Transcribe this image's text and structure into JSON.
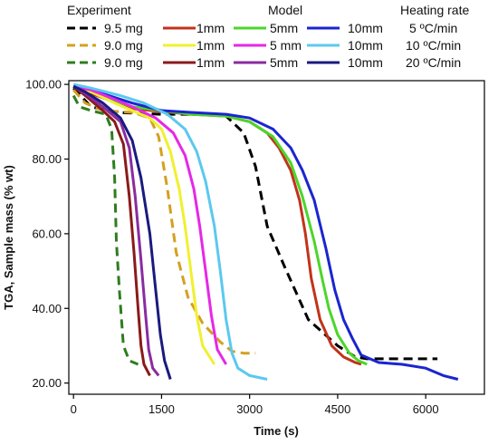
{
  "legend_headers": {
    "experiment": "Experiment",
    "model": "Model",
    "heating_rate": "Heating rate"
  },
  "chart_data": {
    "type": "line",
    "xlabel": "Time (s)",
    "ylabel": "TGA, Sample mass (% wt)",
    "xlim": [
      -80,
      7000
    ],
    "ylim": [
      17,
      101
    ],
    "xticks": [
      0,
      1500,
      3000,
      4500,
      6000
    ],
    "xtick_labels": [
      "0",
      "1500",
      "3000",
      "4500",
      "6000"
    ],
    "yticks": [
      20,
      40,
      60,
      80,
      100
    ],
    "ytick_labels": [
      "20.00",
      "40.00",
      "60.00",
      "80.00",
      "100.00"
    ],
    "grid": false,
    "legend_rows": [
      {
        "experiment": "9.5 mg",
        "m1": "1mm",
        "m5": "5mm",
        "m10": "10mm",
        "rate": "5 ºC/min"
      },
      {
        "experiment": "9.0 mg",
        "m1": "1mm",
        "m5": "5 mm",
        "m10": "10mm",
        "rate": "10 ºC/min"
      },
      {
        "experiment": "9.0 mg",
        "m1": "1mm",
        "m5": "5mm",
        "m10": "10mm",
        "rate": "20 ºC/min"
      }
    ],
    "series": [
      {
        "name": "9.5 mg",
        "color": "#000000",
        "dash": true,
        "x": [
          0,
          300,
          700,
          1500,
          2200,
          2600,
          2900,
          3100,
          3300,
          3600,
          4000,
          4500,
          4800,
          5000,
          5500,
          6200
        ],
        "y": [
          99,
          94,
          92.5,
          92,
          92,
          91.5,
          87,
          78,
          62,
          51,
          37,
          30,
          27,
          26.5,
          26.5,
          26.5
        ]
      },
      {
        "name": "9.0 mg",
        "color": "#d4a020",
        "dash": true,
        "x": [
          0,
          200,
          500,
          1000,
          1300,
          1450,
          1600,
          1750,
          1950,
          2200,
          2500,
          2700,
          2900,
          3100
        ],
        "y": [
          98.5,
          95,
          93,
          92.5,
          91,
          86,
          72,
          55,
          43,
          36,
          31,
          28.5,
          28,
          28
        ]
      },
      {
        "name": "9.0 mg",
        "color": "#2e7d1e",
        "dash": true,
        "x": [
          0,
          100,
          300,
          550,
          650,
          700,
          730,
          780,
          850,
          950,
          1100
        ],
        "y": [
          97,
          94,
          93,
          92,
          88,
          75,
          58,
          45,
          30,
          26,
          25
        ]
      },
      {
        "name": "1mm",
        "color": "#c0341a",
        "x": [
          0,
          400,
          1000,
          2000,
          2600,
          3000,
          3300,
          3500,
          3700,
          3850,
          3950,
          4050,
          4200,
          4400,
          4600,
          4800,
          4900
        ],
        "y": [
          99.5,
          97,
          93.5,
          92,
          91.5,
          90,
          87,
          83,
          77,
          69,
          60,
          48,
          37,
          30,
          27,
          25.5,
          25
        ]
      },
      {
        "name": "5mm",
        "color": "#4cd62a",
        "x": [
          0,
          400,
          1000,
          2000,
          2600,
          3000,
          3400,
          3700,
          3900,
          4100,
          4250,
          4350,
          4500,
          4700,
          4850,
          5000
        ],
        "y": [
          99.5,
          97.5,
          94,
          92,
          91.5,
          90,
          86,
          79,
          70,
          58,
          47,
          40,
          33,
          28,
          26,
          25
        ]
      },
      {
        "name": "10mm",
        "color": "#1a25d0",
        "x": [
          0,
          400,
          1000,
          1500,
          2000,
          2600,
          3000,
          3400,
          3700,
          3900,
          4100,
          4300,
          4450,
          4600,
          4750,
          4900,
          5200,
          5600,
          6000,
          6300,
          6550
        ],
        "y": [
          99.5,
          98,
          95,
          93,
          92.5,
          92,
          91,
          88,
          83,
          77,
          69,
          56,
          45,
          37,
          32,
          27.5,
          25.5,
          25,
          24,
          22,
          21
        ]
      },
      {
        "name": "1mm",
        "color": "#f0f030",
        "x": [
          0,
          300,
          700,
          1000,
          1300,
          1500,
          1650,
          1800,
          1900,
          2000,
          2100,
          2200,
          2400
        ],
        "y": [
          99.5,
          98,
          95,
          93,
          91,
          88,
          82,
          72,
          62,
          50,
          38,
          30,
          25
        ]
      },
      {
        "name": "5 mm",
        "color": "#e628e6",
        "x": [
          0,
          300,
          700,
          1000,
          1400,
          1700,
          1900,
          2050,
          2150,
          2250,
          2350,
          2450,
          2600
        ],
        "y": [
          99.5,
          98.5,
          96,
          94,
          91,
          87,
          81,
          72,
          62,
          50,
          38,
          29,
          25
        ]
      },
      {
        "name": "10mm",
        "color": "#5cc8f0",
        "x": [
          0,
          300,
          800,
          1200,
          1600,
          1900,
          2100,
          2250,
          2400,
          2500,
          2600,
          2700,
          2800,
          3000,
          3300
        ],
        "y": [
          100,
          99,
          97,
          95,
          92,
          88,
          82,
          74,
          62,
          50,
          37,
          28,
          24,
          22,
          21
        ]
      },
      {
        "name": "1mm",
        "color": "#8b1a1a",
        "x": [
          0,
          200,
          500,
          700,
          850,
          950,
          1030,
          1100,
          1150,
          1200,
          1300
        ],
        "y": [
          99.5,
          97,
          93,
          90,
          84,
          70,
          55,
          40,
          30,
          25,
          22
        ]
      },
      {
        "name": "5mm",
        "color": "#8a2ba0",
        "x": [
          0,
          200,
          500,
          800,
          950,
          1050,
          1150,
          1230,
          1280,
          1350,
          1450
        ],
        "y": [
          99.5,
          97.5,
          94,
          90,
          83,
          70,
          53,
          38,
          29,
          24,
          22
        ]
      },
      {
        "name": "10mm",
        "color": "#1a1a80",
        "x": [
          0,
          200,
          500,
          800,
          1000,
          1150,
          1300,
          1400,
          1480,
          1550,
          1650
        ],
        "y": [
          99.5,
          98,
          95,
          91,
          85,
          75,
          60,
          45,
          33,
          26,
          21
        ]
      }
    ]
  }
}
